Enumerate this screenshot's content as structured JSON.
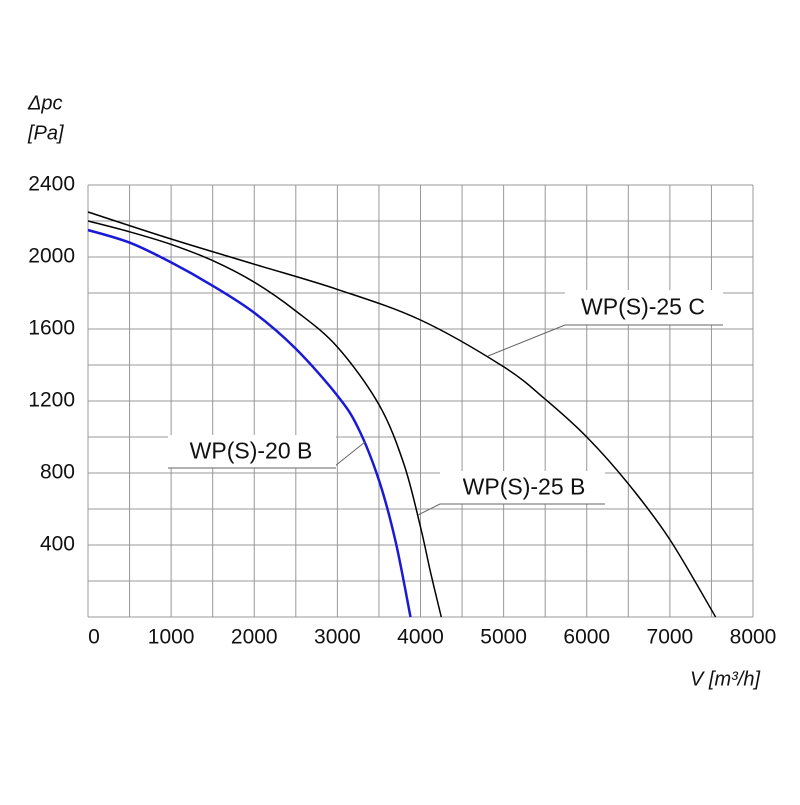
{
  "chart_data": {
    "type": "line",
    "ylabel": "Δpc",
    "yunit": "[Pa]",
    "xlabel": "V [m³/h]",
    "xlim": [
      0,
      8000
    ],
    "ylim": [
      0,
      2400
    ],
    "xticks": [
      0,
      1000,
      2000,
      3000,
      4000,
      5000,
      6000,
      7000,
      8000
    ],
    "yticks": [
      400,
      800,
      1200,
      1600,
      2000,
      2400
    ],
    "minor_xticks": [
      500,
      1500,
      2500,
      3500,
      4500,
      5500,
      6500,
      7500
    ],
    "minor_yticks": [
      0,
      200,
      600,
      1000,
      1400,
      1800,
      2200
    ],
    "grid": true,
    "series": [
      {
        "name": "WP(S)-20 B",
        "color": "#1a1ad6",
        "x": [
          0,
          500,
          1000,
          1500,
          2000,
          2500,
          3000,
          3250,
          3500,
          3700,
          3880
        ],
        "values": [
          2150,
          2080,
          1970,
          1840,
          1690,
          1490,
          1230,
          1050,
          760,
          420,
          0
        ]
      },
      {
        "name": "WP(S)-25 B",
        "color": "#000000",
        "x": [
          0,
          500,
          1000,
          1500,
          2000,
          2500,
          3000,
          3500,
          3800,
          4000,
          4120,
          4250
        ],
        "values": [
          2200,
          2140,
          2070,
          1980,
          1860,
          1700,
          1500,
          1180,
          850,
          500,
          250,
          0
        ]
      },
      {
        "name": "WP(S)-25 C",
        "color": "#000000",
        "x": [
          0,
          1000,
          2000,
          3000,
          4000,
          5000,
          5500,
          6000,
          6500,
          7000,
          7550
        ],
        "values": [
          2250,
          2100,
          1960,
          1820,
          1650,
          1390,
          1210,
          1000,
          740,
          430,
          0
        ]
      }
    ]
  }
}
